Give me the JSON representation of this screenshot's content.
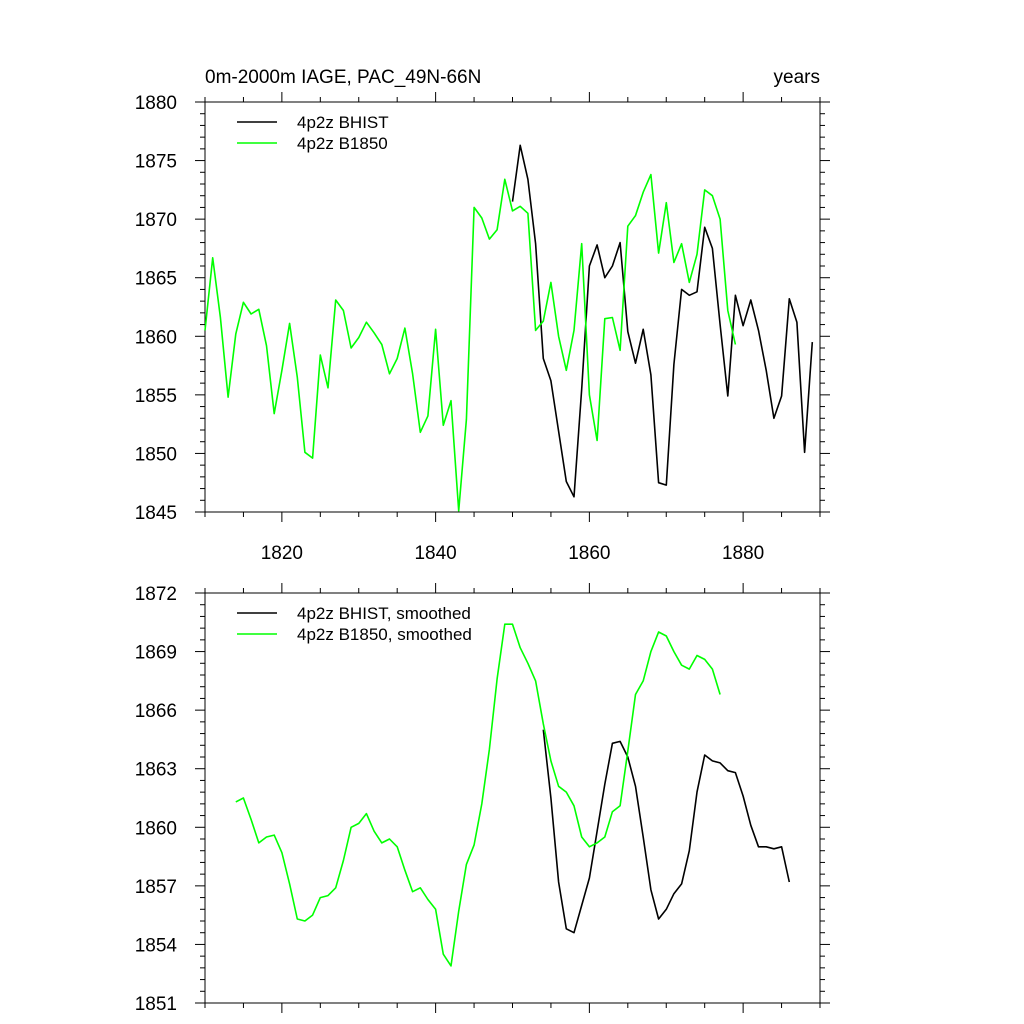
{
  "chart_data": [
    {
      "type": "line",
      "title": "0m-2000m IAGE, PAC_49N-66N",
      "units_label": "years",
      "xlim": [
        1810,
        1890
      ],
      "ylim": [
        1845,
        1880
      ],
      "xticks": [
        "1820",
        "1840",
        "1860",
        "1880"
      ],
      "yticks": [
        "1845",
        "1850",
        "1855",
        "1860",
        "1865",
        "1870",
        "1875",
        "1880"
      ],
      "legend_position": "top-left",
      "series": [
        {
          "name": "4p2z BHIST",
          "color": "#000000",
          "x": [
            1850,
            1851,
            1852,
            1853,
            1854,
            1855,
            1856,
            1857,
            1858,
            1859,
            1860,
            1861,
            1862,
            1863,
            1864,
            1865,
            1866,
            1867,
            1868,
            1869,
            1870,
            1871,
            1872,
            1873,
            1874,
            1875,
            1876,
            1877,
            1878,
            1879,
            1880,
            1881,
            1882,
            1883,
            1884,
            1885,
            1886,
            1887,
            1888,
            1889
          ],
          "values": [
            1871.5,
            1876.3,
            1873.4,
            1867.9,
            1858.1,
            1856.2,
            1851.9,
            1847.6,
            1846.3,
            1855.5,
            1866.0,
            1867.8,
            1865.0,
            1866.0,
            1868.0,
            1860.4,
            1857.7,
            1860.6,
            1856.7,
            1847.5,
            1847.3,
            1857.6,
            1864.0,
            1863.5,
            1863.8,
            1869.3,
            1867.5,
            1861.0,
            1854.9,
            1863.5,
            1860.9,
            1863.1,
            1860.5,
            1857.1,
            1853.0,
            1854.9,
            1863.2,
            1861.2,
            1850.1,
            1859.5
          ]
        },
        {
          "name": "4p2z B1850",
          "color": "#00ff00",
          "x": [
            1810,
            1811,
            1812,
            1813,
            1814,
            1815,
            1816,
            1817,
            1818,
            1819,
            1820,
            1821,
            1822,
            1823,
            1824,
            1825,
            1826,
            1827,
            1828,
            1829,
            1830,
            1831,
            1832,
            1833,
            1834,
            1835,
            1836,
            1837,
            1838,
            1839,
            1840,
            1841,
            1842,
            1843,
            1844,
            1845,
            1846,
            1847,
            1848,
            1849,
            1850,
            1851,
            1852,
            1853,
            1854,
            1855,
            1856,
            1857,
            1858,
            1859,
            1860,
            1861,
            1862,
            1863,
            1864,
            1865,
            1866,
            1867,
            1868,
            1869,
            1870,
            1871,
            1872,
            1873,
            1874,
            1875,
            1876,
            1877,
            1878,
            1879
          ],
          "values": [
            1860.5,
            1866.7,
            1861.6,
            1854.8,
            1860.2,
            1862.9,
            1861.9,
            1862.3,
            1859.2,
            1853.4,
            1857.1,
            1861.1,
            1856.5,
            1850.1,
            1849.6,
            1858.4,
            1855.6,
            1863.1,
            1862.2,
            1859.0,
            1859.9,
            1861.2,
            1860.3,
            1859.3,
            1856.8,
            1858.1,
            1860.7,
            1856.8,
            1851.8,
            1853.2,
            1860.6,
            1852.4,
            1854.5,
            1845.1,
            1852.9,
            1871.0,
            1870.1,
            1868.3,
            1869.1,
            1873.4,
            1870.7,
            1871.1,
            1870.5,
            1860.5,
            1861.3,
            1864.6,
            1860.0,
            1857.1,
            1860.5,
            1867.9,
            1855.0,
            1851.1,
            1861.5,
            1861.6,
            1858.8,
            1869.4,
            1870.3,
            1872.3,
            1873.8,
            1867.1,
            1871.4,
            1866.3,
            1867.9,
            1864.6,
            1867.0,
            1872.5,
            1872.0,
            1870.0,
            1862.2,
            1859.3
          ]
        }
      ]
    },
    {
      "type": "line",
      "title": "",
      "xlim": [
        1810,
        1890
      ],
      "ylim": [
        1851,
        1872
      ],
      "xticks": [],
      "yticks": [
        "1851",
        "1854",
        "1857",
        "1860",
        "1863",
        "1866",
        "1869",
        "1872"
      ],
      "legend_position": "top-left",
      "series": [
        {
          "name": "4p2z BHIST, smoothed",
          "color": "#000000",
          "x": [
            1854,
            1855,
            1856,
            1857,
            1858,
            1859,
            1860,
            1861,
            1862,
            1863,
            1864,
            1865,
            1866,
            1867,
            1868,
            1869,
            1870,
            1871,
            1872,
            1873,
            1874,
            1875,
            1876,
            1877,
            1878,
            1879,
            1880,
            1881,
            1882,
            1883,
            1884,
            1885,
            1886
          ],
          "values": [
            1865.0,
            1861.5,
            1857.2,
            1854.8,
            1854.6,
            1856.0,
            1857.4,
            1859.8,
            1862.2,
            1864.3,
            1864.4,
            1863.6,
            1862.1,
            1859.5,
            1856.8,
            1855.3,
            1855.8,
            1856.6,
            1857.1,
            1858.8,
            1861.8,
            1863.7,
            1863.4,
            1863.3,
            1862.9,
            1862.8,
            1861.6,
            1860.1,
            1859.0,
            1859.0,
            1858.9,
            1859.0,
            1857.2
          ]
        },
        {
          "name": "4p2z B1850, smoothed",
          "color": "#00ff00",
          "x": [
            1814,
            1815,
            1816,
            1817,
            1818,
            1819,
            1820,
            1821,
            1822,
            1823,
            1824,
            1825,
            1826,
            1827,
            1828,
            1829,
            1830,
            1831,
            1832,
            1833,
            1834,
            1835,
            1836,
            1837,
            1838,
            1839,
            1840,
            1841,
            1842,
            1843,
            1844,
            1845,
            1846,
            1847,
            1848,
            1849,
            1850,
            1851,
            1852,
            1853,
            1854,
            1855,
            1856,
            1857,
            1858,
            1859,
            1860,
            1861,
            1862,
            1863,
            1864,
            1865,
            1866,
            1867,
            1868,
            1869,
            1870,
            1871,
            1872,
            1873,
            1874,
            1875,
            1876,
            1877
          ],
          "values": [
            1861.3,
            1861.5,
            1860.4,
            1859.2,
            1859.5,
            1859.6,
            1858.7,
            1857.1,
            1855.3,
            1855.2,
            1855.5,
            1856.4,
            1856.5,
            1856.9,
            1858.3,
            1860.0,
            1860.2,
            1860.7,
            1859.8,
            1859.2,
            1859.4,
            1859.0,
            1857.8,
            1856.7,
            1856.9,
            1856.3,
            1855.8,
            1853.5,
            1852.9,
            1855.7,
            1858.1,
            1859.1,
            1861.2,
            1864.0,
            1867.6,
            1870.4,
            1870.4,
            1869.2,
            1868.4,
            1867.5,
            1865.3,
            1863.4,
            1862.1,
            1861.8,
            1861.1,
            1859.5,
            1859.0,
            1859.2,
            1859.5,
            1860.8,
            1861.1,
            1863.9,
            1866.8,
            1867.5,
            1869.0,
            1870.0,
            1869.8,
            1869.0,
            1868.3,
            1868.1,
            1868.8,
            1868.6,
            1868.1,
            1866.8
          ]
        }
      ]
    }
  ]
}
